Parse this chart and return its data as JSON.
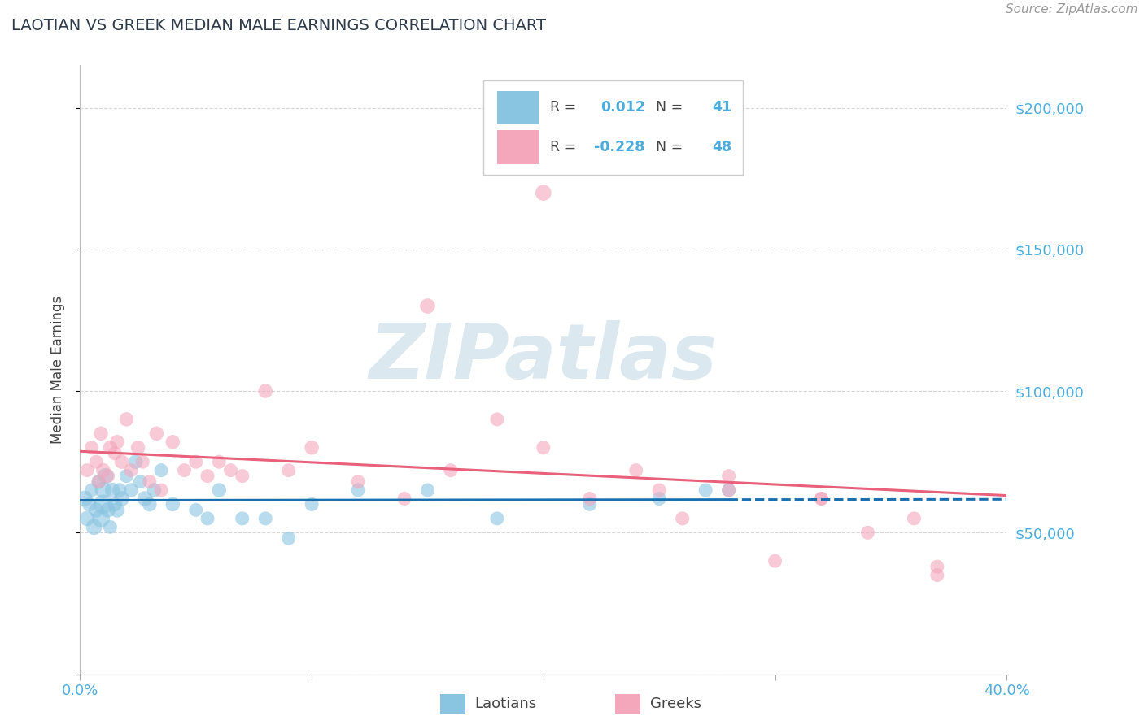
{
  "title": "LAOTIAN VS GREEK MEDIAN MALE EARNINGS CORRELATION CHART",
  "source_text": "Source: ZipAtlas.com",
  "ylabel": "Median Male Earnings",
  "xlim": [
    0.0,
    0.4
  ],
  "ylim": [
    0,
    215000
  ],
  "blue_R": 0.012,
  "blue_N": 41,
  "pink_R": -0.228,
  "pink_N": 48,
  "blue_color": "#89c4e1",
  "pink_color": "#f4a6bb",
  "blue_line_color": "#1a6faf",
  "pink_line_color": "#e8607a",
  "watermark_color": "#dce8f0",
  "background_color": "#ffffff",
  "grid_color": "#cccccc",
  "title_color": "#2d3a4a",
  "axis_label_color": "#444444",
  "tick_color_blue": "#4aaddd",
  "laotians_x": [
    0.002,
    0.003,
    0.004,
    0.005,
    0.006,
    0.007,
    0.008,
    0.009,
    0.01,
    0.01,
    0.011,
    0.012,
    0.013,
    0.014,
    0.015,
    0.016,
    0.017,
    0.018,
    0.02,
    0.022,
    0.024,
    0.026,
    0.028,
    0.03,
    0.032,
    0.035,
    0.04,
    0.05,
    0.055,
    0.06,
    0.07,
    0.08,
    0.09,
    0.1,
    0.12,
    0.15,
    0.18,
    0.22,
    0.25,
    0.27,
    0.28
  ],
  "laotians_y": [
    62000,
    55000,
    60000,
    65000,
    52000,
    58000,
    68000,
    55000,
    60000,
    65000,
    70000,
    58000,
    52000,
    65000,
    60000,
    58000,
    65000,
    62000,
    70000,
    65000,
    75000,
    68000,
    62000,
    60000,
    65000,
    72000,
    60000,
    58000,
    55000,
    65000,
    55000,
    55000,
    48000,
    60000,
    65000,
    65000,
    55000,
    60000,
    62000,
    65000,
    65000
  ],
  "laotians_size": [
    200,
    180,
    160,
    150,
    200,
    180,
    160,
    250,
    300,
    220,
    200,
    180,
    150,
    180,
    160,
    180,
    160,
    180,
    150,
    160,
    160,
    150,
    180,
    160,
    160,
    150,
    160,
    150,
    150,
    160,
    150,
    150,
    150,
    150,
    150,
    150,
    150,
    150,
    150,
    150,
    150
  ],
  "greeks_x": [
    0.003,
    0.005,
    0.007,
    0.008,
    0.009,
    0.01,
    0.012,
    0.013,
    0.015,
    0.016,
    0.018,
    0.02,
    0.022,
    0.025,
    0.027,
    0.03,
    0.033,
    0.035,
    0.04,
    0.045,
    0.05,
    0.055,
    0.06,
    0.065,
    0.07,
    0.08,
    0.09,
    0.1,
    0.12,
    0.14,
    0.16,
    0.18,
    0.2,
    0.22,
    0.24,
    0.26,
    0.28,
    0.3,
    0.32,
    0.34,
    0.36,
    0.37,
    0.25,
    0.2,
    0.15,
    0.28,
    0.32,
    0.37
  ],
  "greeks_y": [
    72000,
    80000,
    75000,
    68000,
    85000,
    72000,
    70000,
    80000,
    78000,
    82000,
    75000,
    90000,
    72000,
    80000,
    75000,
    68000,
    85000,
    65000,
    82000,
    72000,
    75000,
    70000,
    75000,
    72000,
    70000,
    100000,
    72000,
    80000,
    68000,
    62000,
    72000,
    90000,
    80000,
    62000,
    72000,
    55000,
    65000,
    40000,
    62000,
    50000,
    55000,
    38000,
    65000,
    170000,
    130000,
    70000,
    62000,
    35000
  ],
  "greeks_size": [
    150,
    150,
    150,
    150,
    160,
    160,
    150,
    160,
    150,
    160,
    160,
    160,
    150,
    160,
    150,
    150,
    160,
    150,
    160,
    150,
    150,
    150,
    150,
    150,
    150,
    160,
    150,
    160,
    150,
    150,
    150,
    150,
    150,
    150,
    150,
    150,
    150,
    150,
    150,
    150,
    150,
    150,
    150,
    200,
    180,
    150,
    150,
    150
  ]
}
